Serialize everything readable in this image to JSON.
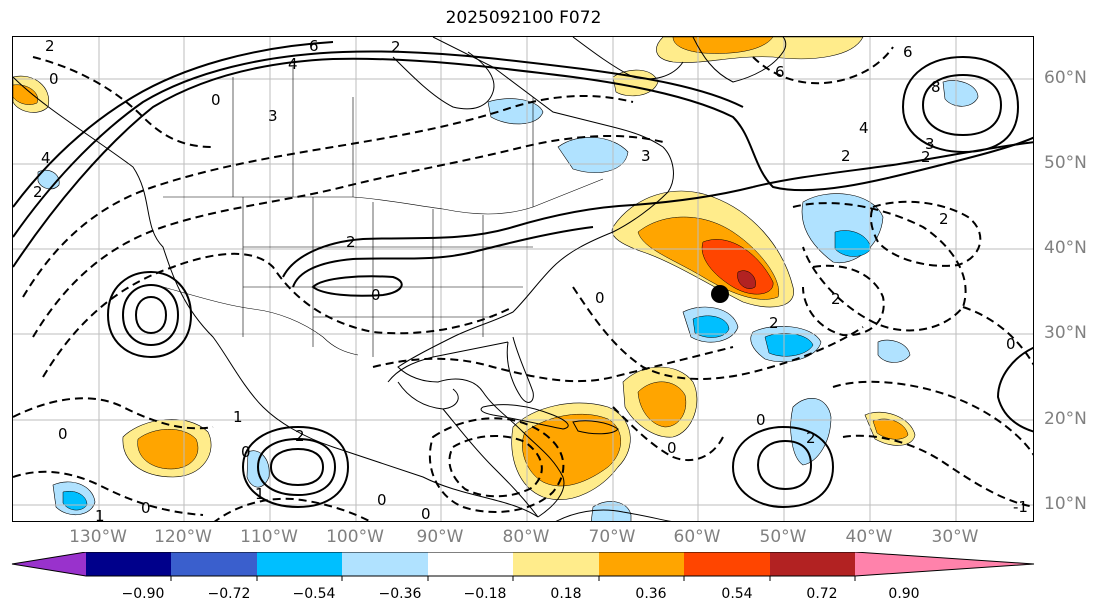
{
  "title": "2025092100 F072",
  "lon_labels": [
    "130°W",
    "120°W",
    "110°W",
    "100°W",
    "90°W",
    "80°W",
    "70°W",
    "60°W",
    "50°W",
    "40°W",
    "30°W"
  ],
  "lat_labels": [
    "60°N",
    "50°N",
    "40°N",
    "30°N",
    "20°N",
    "10°N"
  ],
  "colorbar": {
    "ticks": [
      "−0.90",
      "−0.72",
      "−0.54",
      "−0.36",
      "−0.18",
      "0.18",
      "0.36",
      "0.54",
      "0.72",
      "0.90"
    ],
    "colors": [
      "#9932cc",
      "#00008b",
      "#3a5fcd",
      "#00bfff",
      "#b0e2ff",
      "#ffffff",
      "#ffec8b",
      "#ffa500",
      "#ff4500",
      "#b22222",
      "#ff82ab"
    ]
  },
  "contour_labels": [
    {
      "text": "2"
    },
    {
      "text": "0"
    },
    {
      "text": "6"
    },
    {
      "text": "4"
    },
    {
      "text": "3"
    },
    {
      "text": "2"
    },
    {
      "text": "0"
    },
    {
      "text": "3"
    },
    {
      "text": "2"
    },
    {
      "text": "0"
    },
    {
      "text": "6"
    },
    {
      "text": "8"
    },
    {
      "text": "6"
    },
    {
      "text": "4"
    },
    {
      "text": "2"
    },
    {
      "text": "3"
    },
    {
      "text": "2"
    },
    {
      "text": "2"
    },
    {
      "text": "0"
    },
    {
      "text": "2"
    },
    {
      "text": "2"
    },
    {
      "text": "0"
    },
    {
      "text": "0"
    },
    {
      "text": "1"
    },
    {
      "text": "0"
    },
    {
      "text": "2"
    },
    {
      "text": "1"
    },
    {
      "text": "0"
    },
    {
      "text": "1"
    },
    {
      "text": "0"
    },
    {
      "text": "0"
    },
    {
      "text": "0"
    },
    {
      "text": "0"
    },
    {
      "text": "2"
    },
    {
      "text": "-1"
    },
    {
      "text": "4"
    },
    {
      "text": "2"
    }
  ]
}
